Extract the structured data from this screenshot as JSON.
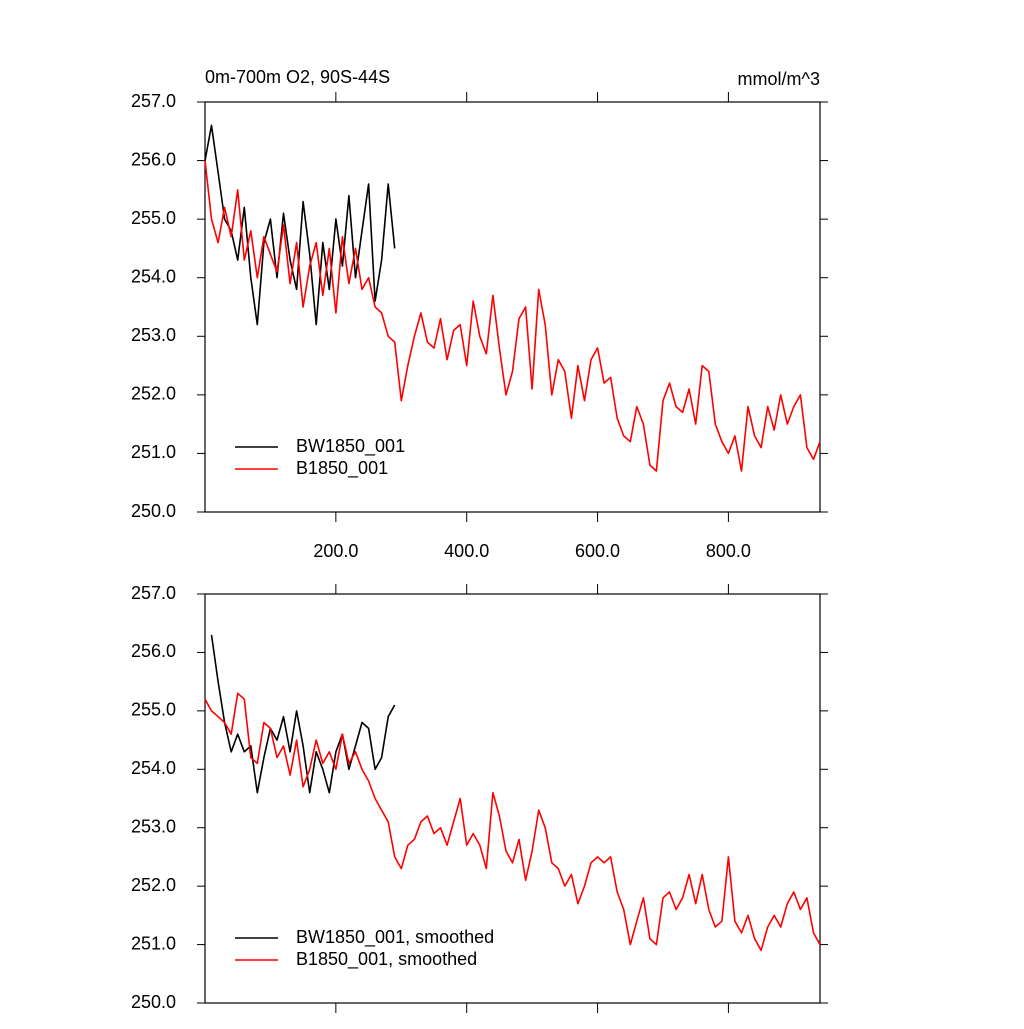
{
  "chart_data": [
    {
      "type": "line",
      "title": "0m-700m O2, 90S-44S",
      "units": "mmol/m^3",
      "xlim": [
        0,
        940
      ],
      "ylim": [
        250,
        257
      ],
      "xticks": [
        {
          "value": 200,
          "label": "200.0"
        },
        {
          "value": 400,
          "label": "400.0"
        },
        {
          "value": 600,
          "label": "600.0"
        },
        {
          "value": 800,
          "label": "800.0"
        }
      ],
      "yticks": [
        {
          "value": 250,
          "label": "250.0"
        },
        {
          "value": 251,
          "label": "251.0"
        },
        {
          "value": 252,
          "label": "252.0"
        },
        {
          "value": 253,
          "label": "253.0"
        },
        {
          "value": 254,
          "label": "254.0"
        },
        {
          "value": 255,
          "label": "255.0"
        },
        {
          "value": 256,
          "label": "256.0"
        },
        {
          "value": 257,
          "label": "257.0"
        }
      ],
      "show_xtick_labels": true,
      "legend": "lower left",
      "series": [
        {
          "name": "BW1850_001",
          "color": "#000000",
          "x": [
            0,
            10,
            20,
            30,
            40,
            50,
            60,
            70,
            80,
            90,
            100,
            110,
            120,
            130,
            140,
            150,
            160,
            170,
            180,
            190,
            200,
            210,
            220,
            230,
            240,
            250,
            260,
            270,
            280,
            290
          ],
          "values": [
            256.0,
            256.6,
            255.8,
            255.0,
            254.8,
            254.3,
            255.2,
            254.0,
            253.2,
            254.6,
            255.0,
            254.0,
            255.1,
            254.3,
            253.8,
            255.3,
            254.4,
            253.2,
            254.6,
            253.8,
            255.0,
            254.2,
            255.4,
            254.0,
            254.8,
            255.6,
            253.6,
            254.3,
            255.6,
            254.5
          ]
        },
        {
          "name": "B1850_001",
          "color": "#ff0000",
          "x": [
            0,
            10,
            20,
            30,
            40,
            50,
            60,
            70,
            80,
            90,
            100,
            110,
            120,
            130,
            140,
            150,
            160,
            170,
            180,
            190,
            200,
            210,
            220,
            230,
            240,
            250,
            260,
            270,
            280,
            290,
            300,
            310,
            320,
            330,
            340,
            350,
            360,
            370,
            380,
            390,
            400,
            410,
            420,
            430,
            440,
            450,
            460,
            470,
            480,
            490,
            500,
            510,
            520,
            530,
            540,
            550,
            560,
            570,
            580,
            590,
            600,
            610,
            620,
            630,
            640,
            650,
            660,
            670,
            680,
            690,
            700,
            710,
            720,
            730,
            740,
            750,
            760,
            770,
            780,
            790,
            800,
            810,
            820,
            830,
            840,
            850,
            860,
            870,
            880,
            890,
            900,
            910,
            920,
            930,
            940
          ],
          "values": [
            256.0,
            255.0,
            254.6,
            255.2,
            254.7,
            255.5,
            254.3,
            254.8,
            254.0,
            254.7,
            254.4,
            254.1,
            254.9,
            253.9,
            254.6,
            253.5,
            254.2,
            254.6,
            253.7,
            254.5,
            253.4,
            254.7,
            253.9,
            254.5,
            253.8,
            254.0,
            253.5,
            253.4,
            253.0,
            252.9,
            251.9,
            252.5,
            253.0,
            253.4,
            252.9,
            252.8,
            253.3,
            252.6,
            253.1,
            253.2,
            252.5,
            253.6,
            253.0,
            252.7,
            253.7,
            252.8,
            252.0,
            252.4,
            253.3,
            253.5,
            252.1,
            253.8,
            253.2,
            252.0,
            252.6,
            252.4,
            251.6,
            252.5,
            251.9,
            252.6,
            252.8,
            252.2,
            252.3,
            251.6,
            251.3,
            251.2,
            251.8,
            251.5,
            250.8,
            250.7,
            251.9,
            252.2,
            251.8,
            251.7,
            252.1,
            251.5,
            252.5,
            252.4,
            251.5,
            251.2,
            251.0,
            251.3,
            250.7,
            251.8,
            251.3,
            251.1,
            251.8,
            251.4,
            252.0,
            251.5,
            251.8,
            252.0,
            251.1,
            250.9,
            251.2
          ]
        }
      ]
    },
    {
      "type": "line",
      "xlim": [
        0,
        940
      ],
      "ylim": [
        250,
        257
      ],
      "xticks": [
        200,
        400,
        600,
        800
      ],
      "yticks": [
        {
          "value": 250,
          "label": "250.0"
        },
        {
          "value": 251,
          "label": "251.0"
        },
        {
          "value": 252,
          "label": "252.0"
        },
        {
          "value": 253,
          "label": "253.0"
        },
        {
          "value": 254,
          "label": "254.0"
        },
        {
          "value": 255,
          "label": "255.0"
        },
        {
          "value": 256,
          "label": "256.0"
        },
        {
          "value": 257,
          "label": "257.0"
        }
      ],
      "show_xtick_labels": false,
      "legend": "lower left",
      "series": [
        {
          "name": "BW1850_001, smoothed",
          "color": "#000000",
          "x": [
            10,
            20,
            30,
            40,
            50,
            60,
            70,
            80,
            90,
            100,
            110,
            120,
            130,
            140,
            150,
            160,
            170,
            180,
            190,
            200,
            210,
            220,
            230,
            240,
            250,
            260,
            270,
            280,
            290
          ],
          "values": [
            256.3,
            255.5,
            254.8,
            254.3,
            254.6,
            254.3,
            254.4,
            253.6,
            254.2,
            254.7,
            254.5,
            254.9,
            254.3,
            255.0,
            254.4,
            253.6,
            254.3,
            254.0,
            253.6,
            254.3,
            254.6,
            254.0,
            254.4,
            254.8,
            254.7,
            254.0,
            254.2,
            254.9,
            255.1
          ]
        },
        {
          "name": "B1850_001, smoothed",
          "color": "#ff0000",
          "x": [
            0,
            10,
            20,
            30,
            40,
            50,
            60,
            70,
            80,
            90,
            100,
            110,
            120,
            130,
            140,
            150,
            160,
            170,
            180,
            190,
            200,
            210,
            220,
            230,
            240,
            250,
            260,
            270,
            280,
            290,
            300,
            310,
            320,
            330,
            340,
            350,
            360,
            370,
            380,
            390,
            400,
            410,
            420,
            430,
            440,
            450,
            460,
            470,
            480,
            490,
            500,
            510,
            520,
            530,
            540,
            550,
            560,
            570,
            580,
            590,
            600,
            610,
            620,
            630,
            640,
            650,
            660,
            670,
            680,
            690,
            700,
            710,
            720,
            730,
            740,
            750,
            760,
            770,
            780,
            790,
            800,
            810,
            820,
            830,
            840,
            850,
            860,
            870,
            880,
            890,
            900,
            910,
            920,
            930,
            940
          ],
          "values": [
            255.2,
            255.0,
            254.9,
            254.8,
            254.6,
            255.3,
            255.2,
            254.2,
            254.1,
            254.8,
            254.7,
            254.2,
            254.4,
            253.9,
            254.5,
            253.7,
            254.0,
            254.5,
            254.1,
            254.3,
            254.0,
            254.6,
            254.1,
            254.3,
            254.0,
            253.8,
            253.5,
            253.3,
            253.1,
            252.5,
            252.3,
            252.7,
            252.8,
            253.1,
            253.2,
            252.9,
            253.0,
            252.7,
            253.1,
            253.5,
            252.7,
            252.9,
            252.7,
            252.3,
            253.6,
            253.2,
            252.6,
            252.4,
            252.8,
            252.1,
            252.6,
            253.3,
            253.0,
            252.4,
            252.3,
            252.0,
            252.2,
            251.7,
            252.0,
            252.4,
            252.5,
            252.4,
            252.5,
            251.9,
            251.6,
            251.0,
            251.4,
            251.8,
            251.1,
            251.0,
            251.8,
            251.9,
            251.6,
            251.8,
            252.2,
            251.7,
            252.2,
            251.6,
            251.3,
            251.4,
            252.5,
            251.4,
            251.2,
            251.5,
            251.1,
            250.9,
            251.3,
            251.5,
            251.3,
            251.7,
            251.9,
            251.6,
            251.8,
            251.2,
            251.0
          ]
        }
      ]
    }
  ]
}
